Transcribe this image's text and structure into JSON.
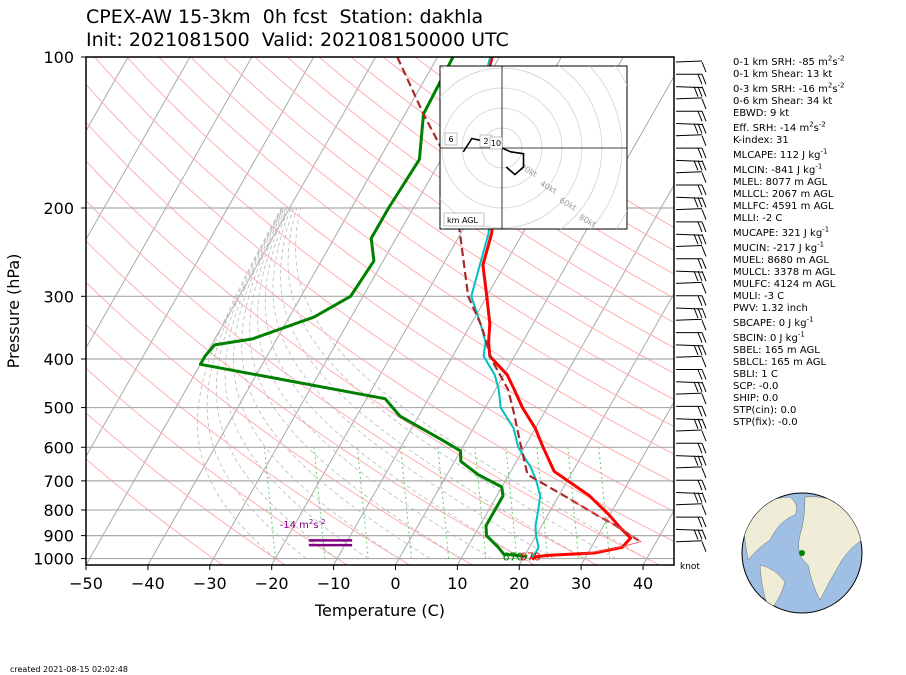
{
  "header": {
    "title_line1": "CPEX-AW 15-3km  0h fcst  Station: dakhla",
    "title_line2": "Init: 2021081500  Valid: 202108150000 UTC"
  },
  "chart_data": {
    "type": "line",
    "subtype": "skew-t log-p diagram",
    "xlabel": "Temperature (C)",
    "ylabel": "Pressure (hPa)",
    "xlim": [
      -50,
      45
    ],
    "ylim": [
      1030,
      100
    ],
    "y_scale": "log",
    "x_ticks": [
      -50,
      -40,
      -30,
      -20,
      -10,
      0,
      10,
      20,
      30,
      40
    ],
    "y_ticks": [
      100,
      200,
      300,
      400,
      500,
      600,
      700,
      800,
      900,
      1000
    ],
    "colors": {
      "temperature": "#ff0000",
      "dewpoint": "#008000",
      "wetbulb": "#00c0c0",
      "parcel": "#a52a2a",
      "srh_layer": "#800080",
      "dry_adiabat": "#ffb0b0",
      "moist_adiabat": "#bbbbbb",
      "mixing_ratio": "#66cc66"
    },
    "series": [
      {
        "key": "temperature",
        "points": [
          [
            -31.2,
            100
          ],
          [
            -29,
            120
          ],
          [
            -26,
            140
          ],
          [
            -20.5,
            170
          ],
          [
            -17,
            200
          ],
          [
            -15,
            225
          ],
          [
            -13.5,
            260
          ],
          [
            -10,
            300
          ],
          [
            -7,
            340
          ],
          [
            -5.5,
            370
          ],
          [
            -4,
            395
          ],
          [
            0.5,
            430
          ],
          [
            3,
            460
          ],
          [
            6,
            500
          ],
          [
            10,
            550
          ],
          [
            13,
            600
          ],
          [
            17,
            670
          ],
          [
            25,
            750
          ],
          [
            30,
            820
          ],
          [
            33,
            870
          ],
          [
            35.5,
            910
          ],
          [
            35,
            950
          ],
          [
            31,
            975
          ],
          [
            24,
            985
          ],
          [
            21.8,
            992
          ],
          [
            21.6,
            1005
          ]
        ]
      },
      {
        "key": "dewpoint",
        "points": [
          [
            -37.5,
            100
          ],
          [
            -37,
            130
          ],
          [
            -33.5,
            160
          ],
          [
            -34,
            200
          ],
          [
            -34,
            230
          ],
          [
            -31.5,
            255
          ],
          [
            -32,
            300
          ],
          [
            -36,
            330
          ],
          [
            -44,
            365
          ],
          [
            -49.5,
            375
          ],
          [
            -50,
            395
          ],
          [
            -50,
            410
          ],
          [
            -17,
            480
          ],
          [
            -13,
            520
          ],
          [
            -4,
            580
          ],
          [
            0,
            610
          ],
          [
            1,
            640
          ],
          [
            5,
            680
          ],
          [
            10,
            720
          ],
          [
            11,
            750
          ],
          [
            11,
            800
          ],
          [
            11,
            860
          ],
          [
            12,
            900
          ],
          [
            15,
            950
          ],
          [
            16.5,
            980
          ],
          [
            19,
            986
          ],
          [
            20.5,
            990
          ]
        ]
      },
      {
        "key": "wetbulb",
        "points": [
          [
            -31.5,
            100
          ],
          [
            -29.5,
            120
          ],
          [
            -26.5,
            140
          ],
          [
            -21,
            170
          ],
          [
            -17.5,
            200
          ],
          [
            -15.5,
            225
          ],
          [
            -14,
            260
          ],
          [
            -12.5,
            300
          ],
          [
            -8.5,
            340
          ],
          [
            -6,
            370
          ],
          [
            -5,
            395
          ],
          [
            -1.5,
            430
          ],
          [
            0.5,
            460
          ],
          [
            2.5,
            500
          ],
          [
            6.5,
            550
          ],
          [
            9,
            600
          ],
          [
            13,
            660
          ],
          [
            15,
            700
          ],
          [
            17,
            750
          ],
          [
            18,
            800
          ],
          [
            19,
            860
          ],
          [
            20,
            900
          ],
          [
            21.5,
            950
          ],
          [
            21.5,
            975
          ],
          [
            21.2,
            990
          ],
          [
            21.3,
            1000
          ]
        ]
      },
      {
        "key": "parcel",
        "points": [
          [
            -46.5,
            100
          ],
          [
            -37,
            130
          ],
          [
            -29,
            160
          ],
          [
            -23,
            200
          ],
          [
            -18,
            245
          ],
          [
            -13,
            300
          ],
          [
            -8,
            345
          ],
          [
            -3.5,
            400
          ],
          [
            2,
            460
          ],
          [
            5,
            510
          ],
          [
            9,
            590
          ],
          [
            13,
            680
          ],
          [
            22,
            760
          ],
          [
            28,
            820
          ],
          [
            32,
            860
          ],
          [
            37,
            920
          ]
        ]
      }
    ],
    "annotations": [
      {
        "text": "670",
        "at": [
          19,
          1010
        ],
        "color": "#008000"
      },
      {
        "text": "670",
        "at": [
          21.8,
          1010
        ],
        "color": "#ff0000"
      },
      {
        "text": "-14 m",
        "text_unit_suffix": "s",
        "at": [
          -15,
          870
        ],
        "color": "#800080"
      }
    ],
    "srh_layer": {
      "pressure_levels": [
        920,
        940
      ],
      "x_range": [
        -14,
        -7
      ]
    },
    "wind_unit_label": "knot",
    "hodograph": {
      "ring_labels": [
        "20kt",
        "40kt",
        "60kt",
        "80kt"
      ],
      "level_labels": [
        "6",
        "2",
        "10"
      ],
      "legend": "km AGL",
      "trace": [
        [
          -9,
          -2
        ],
        [
          -7,
          5
        ],
        [
          -3,
          3
        ],
        [
          2,
          -2
        ],
        [
          5,
          -3
        ],
        [
          5,
          -10
        ],
        [
          3,
          -14
        ],
        [
          1,
          -10
        ]
      ]
    }
  },
  "indices": [
    {
      "label": "0-1 km SRH: -85 m",
      "sup1": "2",
      "mid": "s",
      "sup2": "-2"
    },
    {
      "label": "0-1 km Shear: 13 kt"
    },
    {
      "label": "0-3 km SRH: -16 m",
      "sup1": "2",
      "mid": "s",
      "sup2": "-2"
    },
    {
      "label": "0-6 km Shear: 34 kt"
    },
    {
      "label": "EBWD: 9 kt"
    },
    {
      "label": "Eff. SRH: -14 m",
      "sup1": "2",
      "mid": "s",
      "sup2": "-2"
    },
    {
      "label": "K-index: 31"
    },
    {
      "label": "MLCAPE: 112 J kg",
      "sup1": "-1"
    },
    {
      "label": "MLCIN: -841 J kg",
      "sup1": "-1"
    },
    {
      "label": "MLEL: 8077 m AGL"
    },
    {
      "label": "MLLCL: 2067 m AGL"
    },
    {
      "label": "MLLFC: 4591 m AGL"
    },
    {
      "label": "MLLI: -2 C"
    },
    {
      "label": "MUCAPE: 321 J kg",
      "sup1": "-1"
    },
    {
      "label": "MUCIN: -217 J kg",
      "sup1": "-1"
    },
    {
      "label": "MUEL: 8680 m AGL"
    },
    {
      "label": "MULCL: 3378 m AGL"
    },
    {
      "label": "MULFC: 4124 m AGL"
    },
    {
      "label": "MULI: -3 C"
    },
    {
      "label": "PWV: 1.32 inch"
    },
    {
      "label": "SBCAPE: 0 J kg",
      "sup1": "-1"
    },
    {
      "label": "SBCIN: 0 J kg",
      "sup1": "-1"
    },
    {
      "label": "SBEL: 165 m AGL"
    },
    {
      "label": "SBLCL: 165 m AGL"
    },
    {
      "label": "SBLI: 1 C"
    },
    {
      "label": "SCP: -0.0"
    },
    {
      "label": "SHIP: 0.0"
    },
    {
      "label": "STP(cin): 0.0"
    },
    {
      "label": "STP(fix): -0.0"
    }
  ],
  "footer": {
    "created": "created 2021-08-15 02:02:48"
  }
}
